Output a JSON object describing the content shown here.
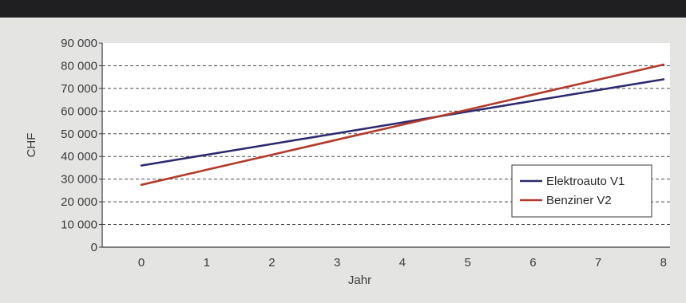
{
  "chart_data": {
    "type": "line",
    "title": "",
    "xlabel": "Jahr",
    "ylabel": "CHF",
    "x": [
      0,
      1,
      2,
      3,
      4,
      5,
      6,
      7,
      8
    ],
    "x_tick_labels": [
      "0",
      "1",
      "2",
      "3",
      "4",
      "5",
      "6",
      "7",
      "8"
    ],
    "xlim": [
      -0.6,
      8.1
    ],
    "ylim": [
      0,
      90000
    ],
    "y_ticks": [
      0,
      10000,
      20000,
      30000,
      40000,
      50000,
      60000,
      70000,
      80000,
      90000
    ],
    "y_tick_labels": [
      "0",
      "10 000",
      "20 000",
      "30 000",
      "40 000",
      "50 000",
      "60 000",
      "70 000",
      "80 000",
      "90 000"
    ],
    "grid": "horizontal dashed",
    "legend_position": "bottom-right",
    "series": [
      {
        "name": "Elektroauto V1",
        "color": "#2b2a6e",
        "values": [
          36000,
          40750,
          45500,
          50250,
          55000,
          59750,
          64500,
          69250,
          74000
        ]
      },
      {
        "name": "Benziner V2",
        "color": "#b33a2a",
        "values": [
          27500,
          34125,
          40750,
          47375,
          54000,
          60625,
          67250,
          73875,
          80500
        ]
      }
    ]
  }
}
